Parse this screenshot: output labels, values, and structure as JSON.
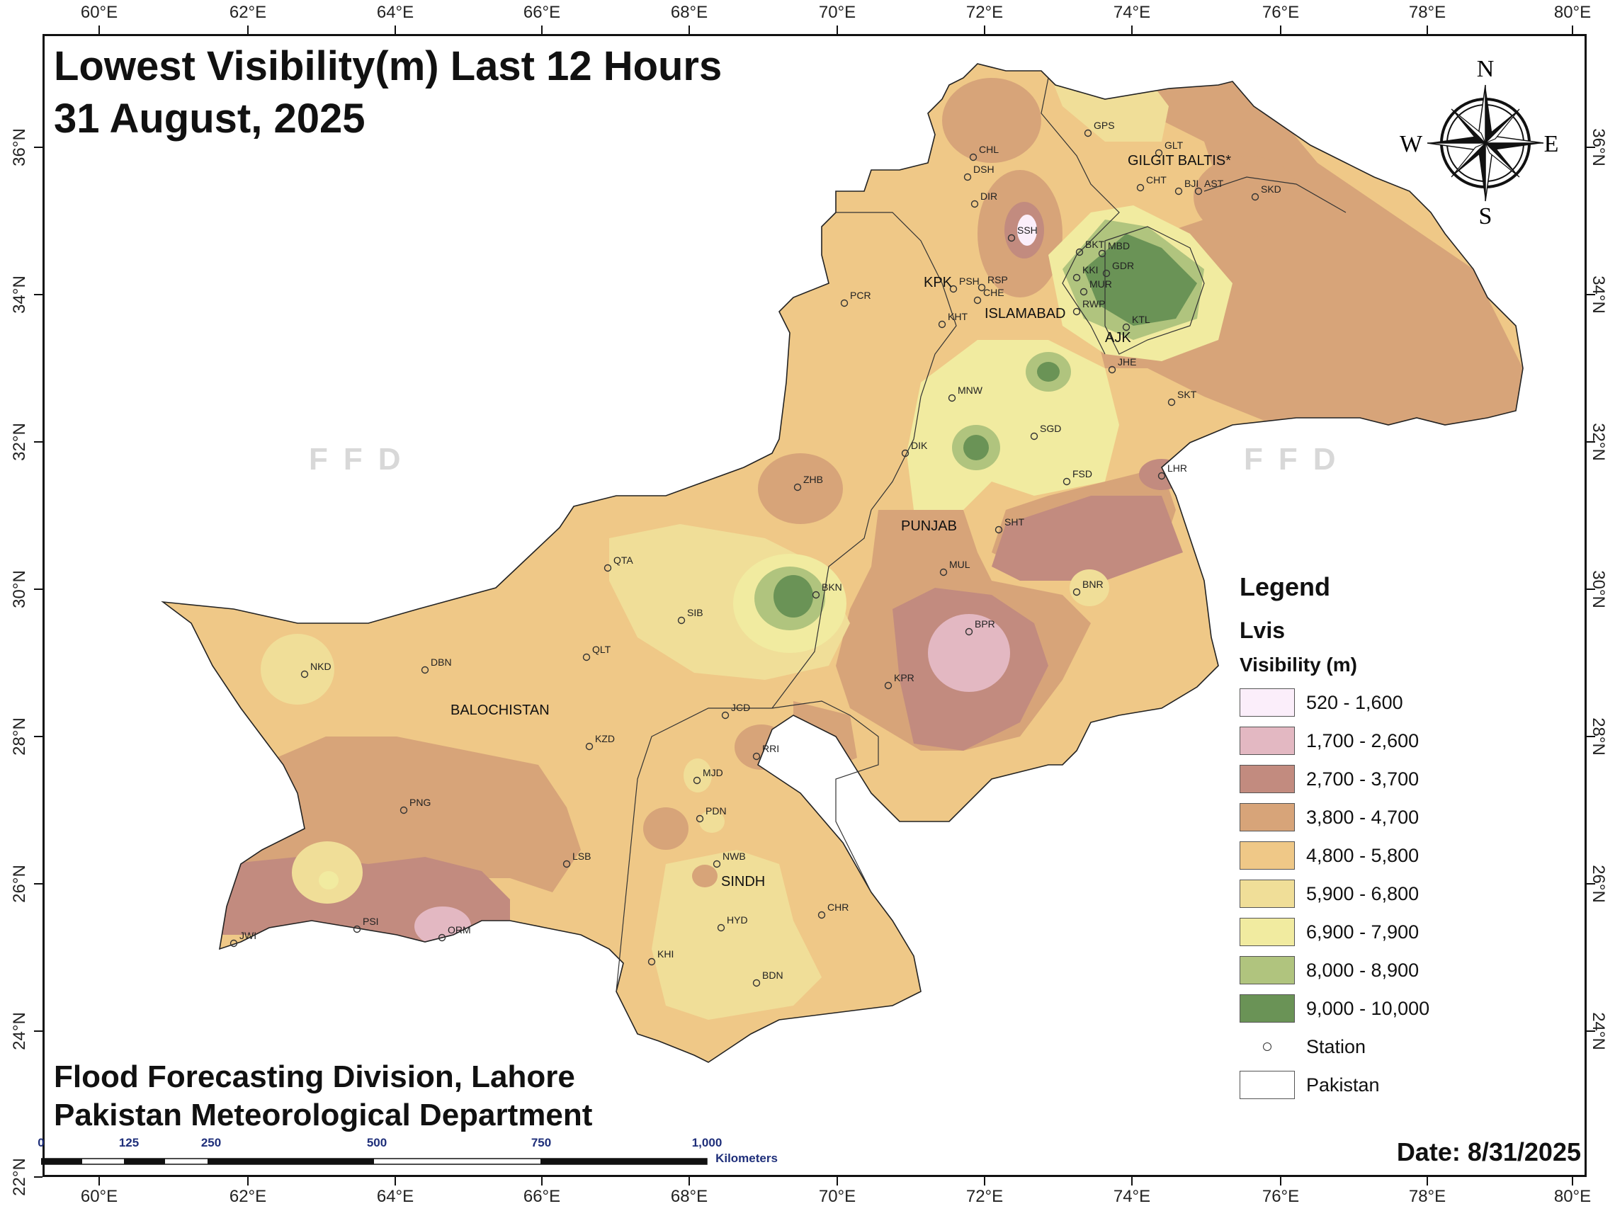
{
  "title": {
    "line1": "Lowest Visibility(m) Last 12 Hours",
    "line2": "31 August, 2025"
  },
  "credits": {
    "line1": "Flood Forecasting Division, Lahore",
    "line2": "Pakistan Meteorological Department"
  },
  "date_text": "Date: 8/31/2025",
  "watermark": "FFD",
  "axes": {
    "top_ticks": [
      "60°E",
      "62°E",
      "64°E",
      "66°E",
      "68°E",
      "70°E",
      "72°E",
      "74°E",
      "76°E",
      "78°E",
      "80°E"
    ],
    "bottom_ticks": [
      "60°E",
      "62°E",
      "64°E",
      "66°E",
      "68°E",
      "70°E",
      "72°E",
      "74°E",
      "76°E",
      "78°E",
      "80°E"
    ],
    "left_ticks": [
      "36°N",
      "34°N",
      "32°N",
      "30°N",
      "28°N",
      "26°N",
      "24°N",
      "22°N"
    ],
    "right_ticks": [
      "36°N",
      "34°N",
      "32°N",
      "30°N",
      "28°N",
      "26°N",
      "24°N"
    ]
  },
  "compass": {
    "n": "N",
    "s": "S",
    "e": "E",
    "w": "W"
  },
  "regions": [
    {
      "name": "GILGIT BALTIS*"
    },
    {
      "name": "KPK"
    },
    {
      "name": "ISLAMABAD"
    },
    {
      "name": "AJK"
    },
    {
      "name": "PUNJAB"
    },
    {
      "name": "BALOCHISTAN"
    },
    {
      "name": "SINDH"
    }
  ],
  "stations": [
    "GPS",
    "GLT",
    "CHL",
    "DSH",
    "DIR",
    "CHT",
    "BJI",
    "AST",
    "SKD",
    "SSH",
    "BKT",
    "MBD",
    "KKI",
    "GDR",
    "MUR",
    "PSH",
    "RSP",
    "CHE",
    "RWP",
    "PCR",
    "KHT",
    "KTL",
    "JHE",
    "MNW",
    "SKT",
    "SGD",
    "DIK",
    "FSD",
    "LHR",
    "ZHB",
    "SHT",
    "MUL",
    "QTA",
    "BKN",
    "BNR",
    "SIB",
    "BPR",
    "NKD",
    "DBN",
    "QLT",
    "KPR",
    "JCD",
    "KZD",
    "RRI",
    "MJD",
    "PNG",
    "PDN",
    "NWB",
    "LSB",
    "CHR",
    "PSI",
    "ORM",
    "JWI",
    "HYD",
    "KHI",
    "BDN"
  ],
  "legend": {
    "title": "Legend",
    "layer": "Lvis",
    "field": "Visibility (m)",
    "classes": [
      {
        "label": "520 - 1,600",
        "color": "#fbeefa"
      },
      {
        "label": "1,700 - 2,600",
        "color": "#e3b8c2"
      },
      {
        "label": "2,700 - 3,700",
        "color": "#c28b7f"
      },
      {
        "label": "3,800 - 4,700",
        "color": "#d7a479"
      },
      {
        "label": "4,800 - 5,800",
        "color": "#efc887"
      },
      {
        "label": "5,900 - 6,800",
        "color": "#f0de98"
      },
      {
        "label": "6,900 - 7,900",
        "color": "#f1eba0"
      },
      {
        "label": "8,000 - 8,900",
        "color": "#b0c47e"
      },
      {
        "label": "9,000 - 10,000",
        "color": "#6a9356"
      }
    ],
    "station_label": "Station",
    "boundary_label": "Pakistan"
  },
  "scale_bar": {
    "labels": [
      "0",
      "125",
      "250",
      "500",
      "750",
      "1,000"
    ],
    "unit": "Kilometers"
  }
}
